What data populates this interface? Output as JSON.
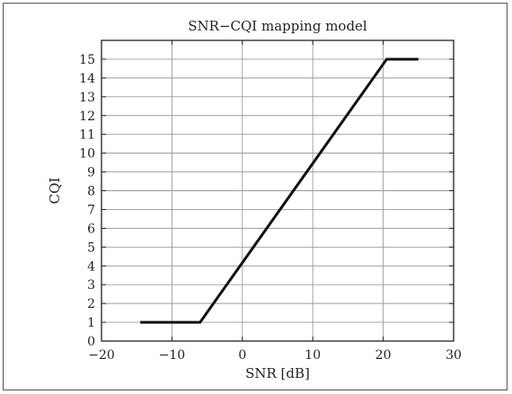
{
  "chart_data": {
    "type": "line",
    "title": "SNR−CQI mapping model",
    "xlabel": "SNR [dB]",
    "ylabel": "CQI",
    "xlim": [
      -20,
      30
    ],
    "ylim": [
      0,
      16
    ],
    "x_ticks": [
      -20,
      -10,
      0,
      10,
      20,
      30
    ],
    "x_tick_labels": [
      "−20",
      "−10",
      "0",
      "10",
      "20",
      "30"
    ],
    "y_ticks": [
      0,
      1,
      2,
      3,
      4,
      5,
      6,
      7,
      8,
      9,
      10,
      11,
      12,
      13,
      14,
      15
    ],
    "y_tick_labels": [
      "0",
      "1",
      "2",
      "3",
      "4",
      "5",
      "6",
      "7",
      "8",
      "9",
      "10",
      "11",
      "12",
      "13",
      "14",
      "15"
    ],
    "grid": true,
    "series": [
      {
        "x": [
          -14.5,
          -6,
          20.5,
          25
        ],
        "y": [
          1,
          1,
          15,
          15
        ]
      }
    ]
  }
}
